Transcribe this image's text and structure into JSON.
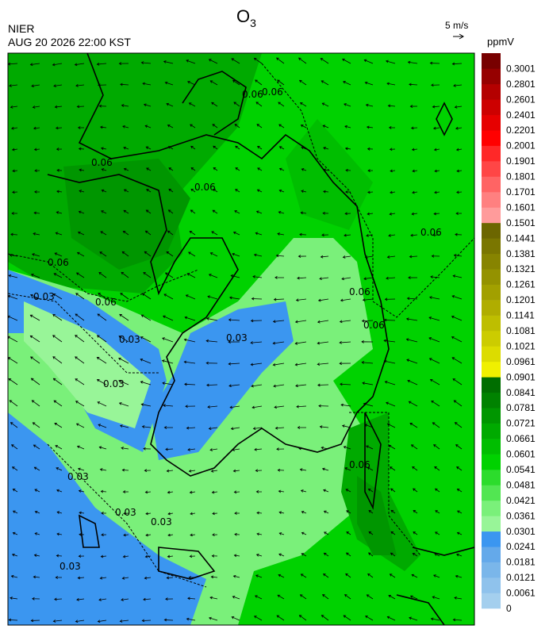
{
  "header": {
    "agency": "NIER",
    "datetime": "AUG 20 2026 22:00 KST",
    "title": "O",
    "title_subscript": "3",
    "wind_scale": "5 m/s"
  },
  "contour_labels": [
    "0.06",
    "0.03"
  ],
  "colorbar": {
    "unit": "ppmV",
    "labels": [
      "0",
      "0.0061",
      "0.0121",
      "0.0181",
      "0.0241",
      "0.0301",
      "0.0361",
      "0.0421",
      "0.0481",
      "0.0541",
      "0.0601",
      "0.0661",
      "0.0721",
      "0.0781",
      "0.0841",
      "0.0901",
      "0.0961",
      "0.1021",
      "0.1081",
      "0.1141",
      "0.1201",
      "0.1261",
      "0.1321",
      "0.1381",
      "0.1441",
      "0.1501",
      "0.1601",
      "0.1701",
      "0.1801",
      "0.1901",
      "0.2001",
      "0.2201",
      "0.2401",
      "0.2601",
      "0.2801",
      "0.3001"
    ],
    "colors": [
      "#a4cfee",
      "#8fc2ec",
      "#7ab6ea",
      "#64a9ea",
      "#3b96f0",
      "#98f598",
      "#7af07a",
      "#52e652",
      "#2cdc2c",
      "#00d200",
      "#00be00",
      "#00aa00",
      "#009600",
      "#008200",
      "#006e00",
      "#f0f000",
      "#dcdc00",
      "#cccc00",
      "#bebe00",
      "#b0ad00",
      "#a2a000",
      "#949200",
      "#878400",
      "#7a7600",
      "#6c6600",
      "#ff9b9b",
      "#ff8080",
      "#ff6464",
      "#ff4646",
      "#ff2828",
      "#ff0000",
      "#e60000",
      "#cd0000",
      "#b40000",
      "#960000",
      "#780000"
    ]
  }
}
